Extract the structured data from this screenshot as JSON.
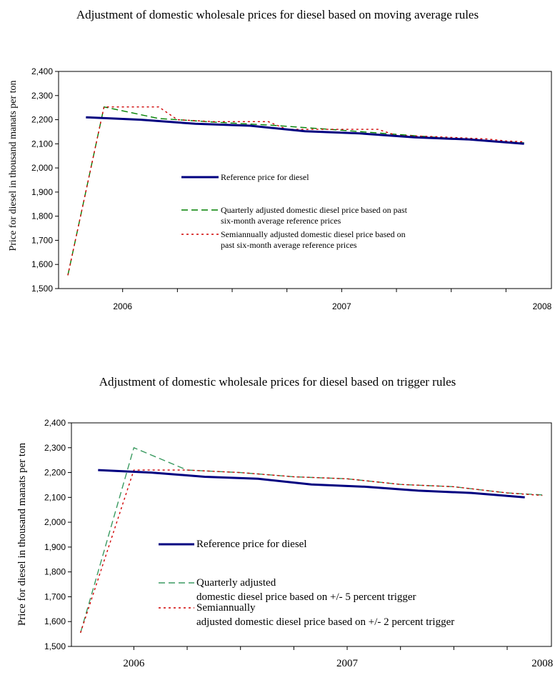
{
  "chart_data": [
    {
      "type": "line",
      "title": "Adjustment of domestic wholesale prices for diesel based on moving average rules",
      "xlabel": "",
      "ylabel": "Price for diesel in thousand manats per ton",
      "ylim": [
        1500,
        2400
      ],
      "yticks": [
        "1,500",
        "1,600",
        "1,700",
        "1,800",
        "1,900",
        "2,000",
        "2,100",
        "2,200",
        "2,300",
        "2,400"
      ],
      "xlim": [
        -0.5,
        8.5
      ],
      "xtick_labels": [
        {
          "label": "2006",
          "at": 0.67
        },
        {
          "label": "2007",
          "at": 4.67
        },
        {
          "label": "2008",
          "at": 8.33
        }
      ],
      "grid": false,
      "legend_position": "center",
      "series": [
        {
          "name": "Reference price for diesel",
          "color": "#000080",
          "style": "solid",
          "x": [
            0,
            1,
            2,
            3,
            4,
            5,
            6,
            7,
            8
          ],
          "y": [
            2210,
            2200,
            2183,
            2175,
            2152,
            2143,
            2127,
            2118,
            2100
          ]
        },
        {
          "name": "Quarterly adjusted domestic diesel price based on past six-month average reference prices",
          "color": "#008000",
          "style": "dashed",
          "x": [
            -0.33,
            0.33,
            1.33,
            2.33,
            3.33,
            4.33,
            5.33,
            6.33,
            7.33,
            8.0
          ],
          "y": [
            1555,
            2253,
            2205,
            2190,
            2178,
            2162,
            2145,
            2128,
            2113,
            2104
          ]
        },
        {
          "name": "Semiannually adjusted domestic diesel price based on past six-month average reference prices",
          "color": "#d00000",
          "style": "dotted",
          "x": [
            -0.33,
            0.33,
            1.33,
            1.67,
            2.33,
            3.33,
            3.67,
            4.33,
            5.33,
            5.67,
            6.33,
            7.33,
            7.67,
            8.0
          ],
          "y": [
            1555,
            2253,
            2253,
            2200,
            2192,
            2192,
            2160,
            2160,
            2160,
            2135,
            2130,
            2120,
            2112,
            2108
          ]
        }
      ]
    },
    {
      "type": "line",
      "title": "Adjustment of domestic wholesale prices for diesel based on trigger rules",
      "xlabel": "",
      "ylabel": "Price for diesel in thousand manats per ton",
      "ylim": [
        1500,
        2400
      ],
      "yticks": [
        "1,500",
        "1,600",
        "1,700",
        "1,800",
        "1,900",
        "2,000",
        "2,100",
        "2,200",
        "2,300",
        "2,400"
      ],
      "xlim": [
        -0.5,
        8.5
      ],
      "xtick_labels": [
        {
          "label": "2006",
          "at": 0.67
        },
        {
          "label": "2007",
          "at": 4.67
        },
        {
          "label": "2008",
          "at": 8.33
        }
      ],
      "grid": false,
      "legend_position": "center",
      "series": [
        {
          "name": "Reference price for diesel",
          "color": "#000080",
          "style": "solid",
          "x": [
            0,
            1,
            2,
            3,
            4,
            5,
            6,
            7,
            8
          ],
          "y": [
            2210,
            2200,
            2183,
            2175,
            2152,
            2143,
            2127,
            2118,
            2100
          ]
        },
        {
          "name": "Quarterly adjusted domestic diesel price based on +/- 5 percent trigger",
          "color": "#3a9a60",
          "style": "dashed",
          "x": [
            -0.33,
            0.67,
            1.67,
            2.67,
            3.67,
            4.67,
            5.67,
            6.67,
            7.67,
            8.33
          ],
          "y": [
            1555,
            2300,
            2210,
            2200,
            2183,
            2175,
            2152,
            2143,
            2118,
            2110
          ]
        },
        {
          "name": "Semiannually adjusted domestic diesel price based on +/- 2 percent trigger",
          "color": "#d00000",
          "style": "dotted",
          "x": [
            -0.33,
            0.67,
            1.67,
            2.67,
            3.67,
            4.67,
            5.67,
            6.67,
            7.67,
            8.33
          ],
          "y": [
            1555,
            2210,
            2210,
            2200,
            2183,
            2175,
            2152,
            2143,
            2118,
            2108
          ]
        }
      ]
    }
  ]
}
